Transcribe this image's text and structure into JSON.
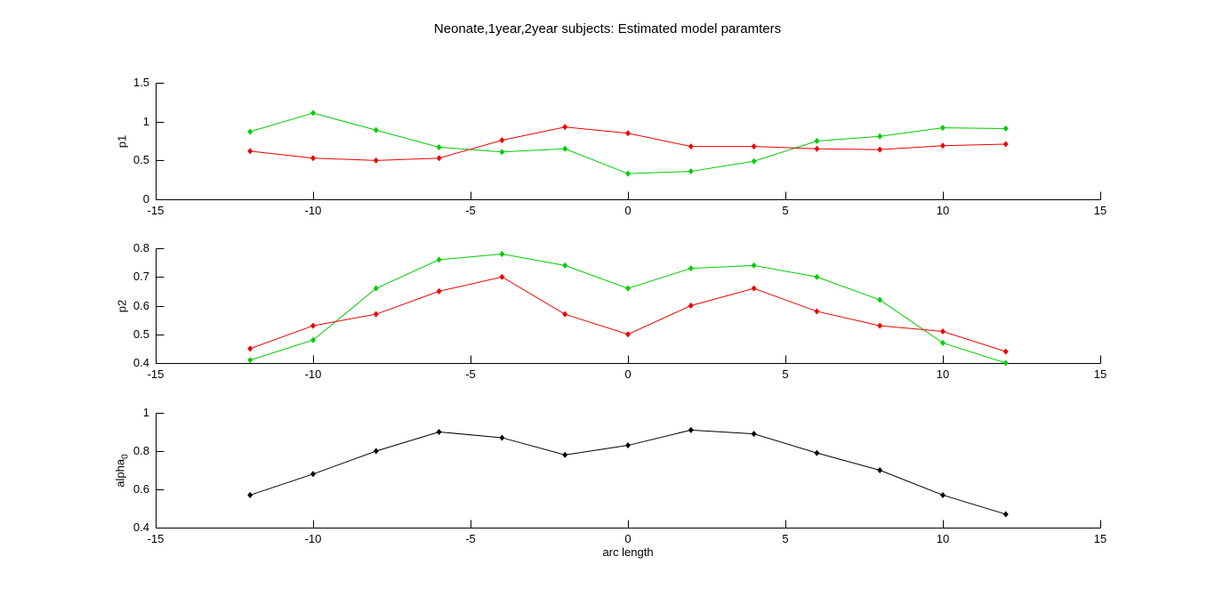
{
  "figure_title": "Neonate,1year,2year subjects: Estimated model paramters",
  "chart_data": [
    {
      "type": "line",
      "ylabel": "p1",
      "ylabel_sub": "",
      "ylim": [
        0,
        1.5
      ],
      "yticks": [
        0,
        0.5,
        1,
        1.5
      ],
      "yticklabels": [
        "0",
        "0.5",
        "1",
        "1.5"
      ],
      "xlim": [
        -15,
        15
      ],
      "xticks": [
        -15,
        -10,
        -5,
        0,
        5,
        10,
        15
      ],
      "xticklabels": [
        "-15",
        "-10",
        "-5",
        "0",
        "5",
        "10",
        "15"
      ],
      "x": [
        -12,
        -10,
        -8,
        -6,
        -4,
        -2,
        0,
        2,
        4,
        6,
        8,
        10,
        12
      ],
      "grid": false,
      "legend": "none",
      "series": [
        {
          "name": "green-series",
          "color": "#00cc00",
          "marker": "diamond",
          "values": [
            0.87,
            1.11,
            0.89,
            0.67,
            0.61,
            0.65,
            0.33,
            0.36,
            0.49,
            0.75,
            0.81,
            0.92,
            0.91
          ]
        },
        {
          "name": "red-series",
          "color": "#ee0000",
          "marker": "diamond",
          "values": [
            0.62,
            0.53,
            0.5,
            0.53,
            0.76,
            0.93,
            0.85,
            0.68,
            0.68,
            0.65,
            0.64,
            0.69,
            0.71
          ]
        }
      ]
    },
    {
      "type": "line",
      "ylabel": "p2",
      "ylabel_sub": "",
      "ylim": [
        0.4,
        0.8
      ],
      "yticks": [
        0.4,
        0.5,
        0.6,
        0.7,
        0.8
      ],
      "yticklabels": [
        "0.4",
        "0.5",
        "0.6",
        "0.7",
        "0.8"
      ],
      "xlim": [
        -15,
        15
      ],
      "xticks": [
        -15,
        -10,
        -5,
        0,
        5,
        10,
        15
      ],
      "xticklabels": [
        "-15",
        "-10",
        "-5",
        "0",
        "5",
        "10",
        "15"
      ],
      "x": [
        -12,
        -10,
        -8,
        -6,
        -4,
        -2,
        0,
        2,
        4,
        6,
        8,
        10,
        12
      ],
      "grid": false,
      "legend": "none",
      "series": [
        {
          "name": "green-series",
          "color": "#00cc00",
          "marker": "diamond",
          "values": [
            0.41,
            0.48,
            0.66,
            0.76,
            0.78,
            0.74,
            0.66,
            0.73,
            0.74,
            0.7,
            0.62,
            0.47,
            0.4
          ]
        },
        {
          "name": "red-series",
          "color": "#ee0000",
          "marker": "diamond",
          "values": [
            0.45,
            0.53,
            0.57,
            0.65,
            0.7,
            0.57,
            0.5,
            0.6,
            0.66,
            0.58,
            0.53,
            0.51,
            0.44
          ]
        }
      ]
    },
    {
      "type": "line",
      "ylabel": "alpha",
      "ylabel_sub": "0",
      "xlabel": "arc length",
      "ylim": [
        0.4,
        1.0
      ],
      "yticks": [
        0.4,
        0.6,
        0.8,
        1.0
      ],
      "yticklabels": [
        "0.4",
        "0.6",
        "0.8",
        "1"
      ],
      "xlim": [
        -15,
        15
      ],
      "xticks": [
        -15,
        -10,
        -5,
        0,
        5,
        10,
        15
      ],
      "xticklabels": [
        "-15",
        "-10",
        "-5",
        "0",
        "5",
        "10",
        "15"
      ],
      "x": [
        -12,
        -10,
        -8,
        -6,
        -4,
        -2,
        0,
        2,
        4,
        6,
        8,
        10,
        12
      ],
      "grid": false,
      "legend": "none",
      "series": [
        {
          "name": "black-series",
          "color": "#000000",
          "marker": "diamond",
          "values": [
            0.57,
            0.68,
            0.8,
            0.9,
            0.87,
            0.78,
            0.83,
            0.91,
            0.89,
            0.79,
            0.7,
            0.57,
            0.47
          ]
        }
      ]
    }
  ]
}
